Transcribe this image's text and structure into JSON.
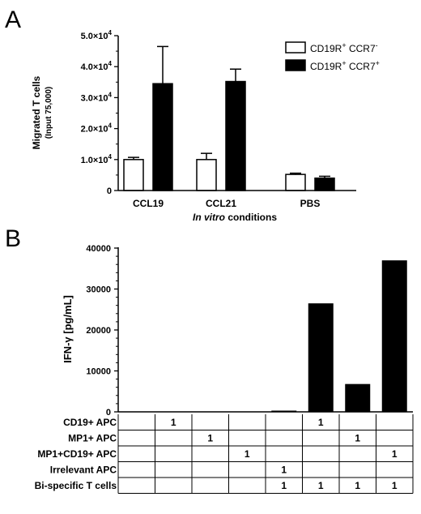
{
  "chart_data": [
    {
      "panel_label": "A",
      "type": "bar",
      "categories": [
        "CCL19",
        "CCL21",
        "PBS"
      ],
      "ylabel": "Migrated T cells",
      "ylabel_sub": "(Input 75,000)",
      "xlabel_italic": "In vitro",
      "xlabel_rest": " conditions",
      "ylim": [
        0,
        50000
      ],
      "yticks": [
        0,
        10000,
        20000,
        30000,
        40000,
        50000
      ],
      "ytick_labels": [
        "0",
        "1.0×10",
        "2.0×10",
        "3.0×10",
        "4.0×10",
        "5.0×10"
      ],
      "ytick_exp": [
        "",
        "4",
        "4",
        "4",
        "4",
        "4"
      ],
      "legend_position": "top-right",
      "series": [
        {
          "name": "CD19R",
          "sup1": "+",
          "name2": " CCR7",
          "sup2": "-",
          "color": "#ffffff",
          "values": [
            10000,
            10000,
            5200
          ],
          "errors": [
            700,
            2000,
            400
          ]
        },
        {
          "name": "CD19R",
          "sup1": "+",
          "name2": " CCR7",
          "sup2": "+",
          "color": "#000000",
          "values": [
            34500,
            35200,
            4000
          ],
          "errors": [
            12000,
            4000,
            600
          ]
        }
      ]
    },
    {
      "panel_label": "B",
      "type": "bar",
      "ylabel": "IFN-γ [pg/mL]",
      "ylim": [
        0,
        40000
      ],
      "yticks": [
        0,
        10000,
        20000,
        30000,
        40000
      ],
      "ytick_labels": [
        "0",
        "10000",
        "20000",
        "30000",
        "40000"
      ],
      "values": [
        0,
        0,
        0,
        0,
        300,
        26500,
        6800,
        37000
      ],
      "bar_color": "#000000",
      "table": {
        "rows": [
          {
            "label": "CD19+ APC",
            "cells": [
              "",
              "1",
              "",
              "",
              "",
              "1",
              "",
              ""
            ]
          },
          {
            "label": "MP1+ APC",
            "cells": [
              "",
              "",
              "1",
              "",
              "",
              "",
              "1",
              ""
            ]
          },
          {
            "label": "MP1+CD19+ APC",
            "cells": [
              "",
              "",
              "",
              "1",
              "",
              "",
              "",
              "1"
            ]
          },
          {
            "label": "Irrelevant APC",
            "cells": [
              "",
              "",
              "",
              "",
              "1",
              "",
              "",
              ""
            ]
          },
          {
            "label": "Bi-specific T cells",
            "cells": [
              "",
              "",
              "",
              "",
              "1",
              "1",
              "1",
              "1"
            ]
          }
        ]
      }
    }
  ]
}
